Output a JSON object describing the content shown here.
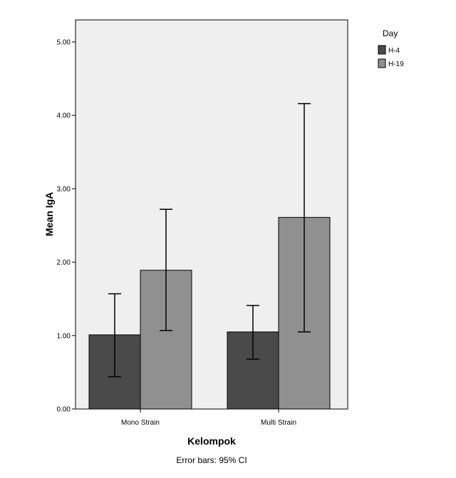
{
  "chart_data": {
    "type": "bar",
    "categories": [
      "Mono Strain",
      "Multi Strain"
    ],
    "series": [
      {
        "name": "H-4",
        "color": "#4a4a4a",
        "values": [
          1.01,
          1.05
        ],
        "ci_low": [
          0.44,
          0.68
        ],
        "ci_high": [
          1.57,
          1.41
        ]
      },
      {
        "name": "H-19",
        "color": "#909090",
        "values": [
          1.89,
          2.61
        ],
        "ci_low": [
          1.07,
          1.05
        ],
        "ci_high": [
          2.72,
          4.16
        ]
      }
    ],
    "xlabel": "Kelompok",
    "ylabel": "Mean IgA",
    "ylim": [
      0,
      5.3
    ],
    "yticks": [
      "0.00",
      "1.00",
      "2.00",
      "3.00",
      "4.00",
      "5.00"
    ],
    "legend_title": "Day",
    "legend_position": "top-right",
    "footnote": "Error bars: 95% CI",
    "plot_background": "#efefef"
  }
}
